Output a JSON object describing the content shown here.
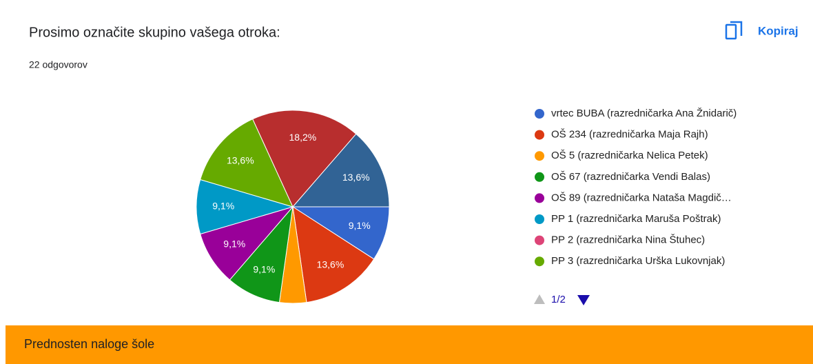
{
  "chart_data": {
    "type": "pie",
    "title": "Prosimo označite skupino vašega otroka:",
    "subtitle": "22 odgovorov",
    "categories": [
      "vrtec BUBA (razredničarka Ana Žnidarič)",
      "OŠ 234 (razredničarka Maja Rajh)",
      "OŠ 5 (razredničarka Nelica Petek)",
      "OŠ 67 (razredničarka Vendi Balas)",
      "OŠ 89 (razredničarka Nataša Magdič…",
      "PP 1 (razredničarka Maruša Poštrak)",
      "PP 2 (razredničarka Nina Štuhec)",
      "PP 3 (razredničarka Urška Lukovnjak)",
      null,
      null
    ],
    "values": [
      9.1,
      13.6,
      4.5,
      9.1,
      9.1,
      9.1,
      0,
      13.6,
      18.2,
      13.6
    ],
    "value_labels": [
      "9,1%",
      "13,6%",
      null,
      "9,1%",
      "9,1%",
      "9,1%",
      null,
      "13,6%",
      "18,2%",
      "13,6%"
    ],
    "colors": [
      "#3366cc",
      "#dc3912",
      "#ff9900",
      "#109618",
      "#990099",
      "#0099c6",
      "#dd4477",
      "#66aa00",
      "#b82e2e",
      "#316395"
    ],
    "legend_page": "1/2"
  },
  "copy_button": "Kopiraj",
  "footer": "Prednosten naloge šole"
}
